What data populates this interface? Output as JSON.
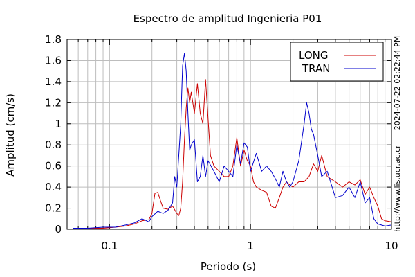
{
  "chart_data": {
    "type": "line",
    "title": "Espectro de amplitud Ingenieria P01",
    "xlabel": "Periodo (s)",
    "ylabel": "Amplitud (cm/s)",
    "x_scale": "log",
    "xlim": [
      0.05,
      10
    ],
    "ylim": [
      0,
      1.8
    ],
    "x_ticks": [
      {
        "value": 0.1,
        "label": "0.1"
      },
      {
        "value": 1,
        "label": "1"
      },
      {
        "value": 10,
        "label": "10"
      }
    ],
    "y_ticks": [
      {
        "value": 0,
        "label": "0"
      },
      {
        "value": 0.2,
        "label": "0.2"
      },
      {
        "value": 0.4,
        "label": "0.4"
      },
      {
        "value": 0.6,
        "label": "0.6"
      },
      {
        "value": 0.8,
        "label": "0.8"
      },
      {
        "value": 1,
        "label": "1"
      },
      {
        "value": 1.2,
        "label": "1.2"
      },
      {
        "value": 1.4,
        "label": "1.4"
      },
      {
        "value": 1.6,
        "label": "1.6"
      },
      {
        "value": 1.8,
        "label": "1.8"
      }
    ],
    "grid": true,
    "legend_position": "top-right",
    "series": [
      {
        "name": "LONG",
        "color": "#cc0000",
        "x": [
          0.055,
          0.07,
          0.09,
          0.11,
          0.13,
          0.15,
          0.17,
          0.19,
          0.2,
          0.21,
          0.22,
          0.23,
          0.24,
          0.26,
          0.28,
          0.3,
          0.31,
          0.32,
          0.33,
          0.34,
          0.35,
          0.36,
          0.37,
          0.38,
          0.4,
          0.42,
          0.44,
          0.46,
          0.48,
          0.5,
          0.52,
          0.55,
          0.6,
          0.65,
          0.7,
          0.75,
          0.8,
          0.85,
          0.9,
          0.95,
          1.0,
          1.05,
          1.1,
          1.2,
          1.3,
          1.4,
          1.5,
          1.6,
          1.7,
          1.8,
          1.9,
          2.0,
          2.2,
          2.4,
          2.6,
          2.8,
          3.0,
          3.2,
          3.5,
          4.0,
          4.5,
          5.0,
          5.5,
          6.0,
          6.5,
          7.0,
          7.5,
          8.0,
          8.5,
          9.0,
          10.0
        ],
        "y": [
          0.01,
          0.01,
          0.01,
          0.02,
          0.03,
          0.05,
          0.08,
          0.09,
          0.15,
          0.34,
          0.35,
          0.27,
          0.2,
          0.19,
          0.22,
          0.15,
          0.13,
          0.2,
          0.45,
          0.85,
          1.15,
          1.34,
          1.2,
          1.3,
          1.1,
          1.38,
          1.1,
          1.0,
          1.42,
          1.05,
          0.7,
          0.6,
          0.55,
          0.5,
          0.5,
          0.6,
          0.87,
          0.6,
          0.75,
          0.65,
          0.6,
          0.45,
          0.4,
          0.37,
          0.35,
          0.22,
          0.2,
          0.3,
          0.4,
          0.45,
          0.42,
          0.4,
          0.45,
          0.45,
          0.5,
          0.62,
          0.55,
          0.7,
          0.5,
          0.45,
          0.4,
          0.45,
          0.42,
          0.47,
          0.33,
          0.4,
          0.3,
          0.22,
          0.1,
          0.08,
          0.07
        ]
      },
      {
        "name": "TRAN",
        "color": "#0000cc",
        "x": [
          0.055,
          0.07,
          0.09,
          0.11,
          0.13,
          0.15,
          0.17,
          0.19,
          0.2,
          0.22,
          0.24,
          0.26,
          0.28,
          0.29,
          0.3,
          0.31,
          0.32,
          0.33,
          0.34,
          0.35,
          0.36,
          0.37,
          0.38,
          0.4,
          0.42,
          0.44,
          0.46,
          0.48,
          0.5,
          0.55,
          0.6,
          0.65,
          0.7,
          0.75,
          0.8,
          0.85,
          0.9,
          0.95,
          1.0,
          1.1,
          1.2,
          1.3,
          1.4,
          1.5,
          1.6,
          1.7,
          1.8,
          1.9,
          2.0,
          2.2,
          2.4,
          2.5,
          2.6,
          2.7,
          2.8,
          3.0,
          3.2,
          3.5,
          4.0,
          4.5,
          5.0,
          5.5,
          6.0,
          6.5,
          7.0,
          7.5,
          8.0,
          8.5,
          9.0,
          10.0
        ],
        "y": [
          0.01,
          0.01,
          0.02,
          0.02,
          0.04,
          0.06,
          0.1,
          0.07,
          0.12,
          0.17,
          0.15,
          0.18,
          0.25,
          0.5,
          0.4,
          0.7,
          1.0,
          1.55,
          1.67,
          1.5,
          1.1,
          0.75,
          0.8,
          0.85,
          0.45,
          0.5,
          0.7,
          0.5,
          0.65,
          0.55,
          0.45,
          0.6,
          0.55,
          0.5,
          0.8,
          0.62,
          0.82,
          0.78,
          0.55,
          0.72,
          0.55,
          0.6,
          0.55,
          0.48,
          0.4,
          0.55,
          0.45,
          0.4,
          0.45,
          0.65,
          1.0,
          1.2,
          1.1,
          0.95,
          0.9,
          0.7,
          0.5,
          0.55,
          0.3,
          0.32,
          0.4,
          0.3,
          0.45,
          0.25,
          0.3,
          0.1,
          0.05,
          0.04,
          0.03,
          0.04
        ]
      }
    ],
    "side_annotations": [
      "2024-07-22 02:22:44 PM",
      "http://www.lis.ucr.ac.cr"
    ]
  }
}
